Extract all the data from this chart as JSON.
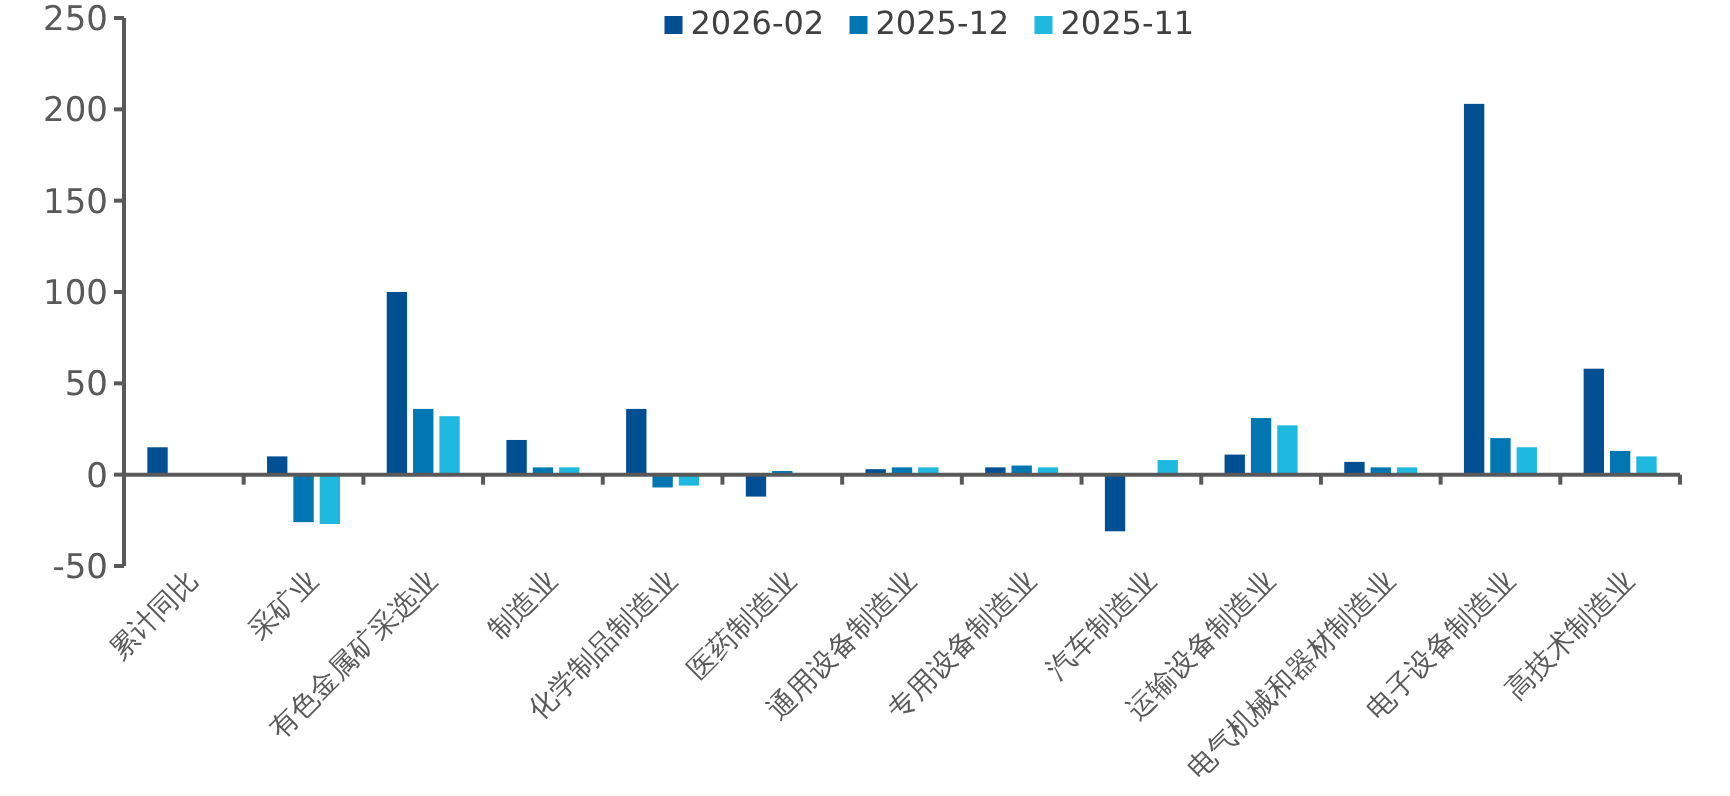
{
  "chart_data": {
    "type": "bar",
    "categories": [
      "累计同比",
      "采矿业",
      "有色金属矿采选业",
      "制造业",
      "化学制品制造业",
      "医药制造业",
      "通用设备制造业",
      "专用设备制造业",
      "汽车制造业",
      "运输设备制造业",
      "电气机械和器材制造业",
      "电子设备制造业",
      "高技术制造业"
    ],
    "series": [
      {
        "name": "2026-02",
        "color": "#004f93",
        "values": [
          15,
          10,
          100,
          19,
          36,
          -12,
          3,
          4,
          -31,
          11,
          7,
          203,
          58
        ]
      },
      {
        "name": "2025-12",
        "color": "#0077b3",
        "values": [
          null,
          -26,
          36,
          4,
          -7,
          2,
          4,
          5,
          null,
          31,
          4,
          20,
          13
        ]
      },
      {
        "name": "2025-11",
        "color": "#1fb9e0",
        "values": [
          null,
          -27,
          32,
          4,
          -6,
          null,
          4,
          4,
          8,
          27,
          4,
          15,
          10
        ]
      }
    ],
    "ylim": [
      -50,
      250
    ],
    "yticks": [
      -50,
      0,
      50,
      100,
      150,
      200,
      250
    ],
    "legend": "top"
  }
}
